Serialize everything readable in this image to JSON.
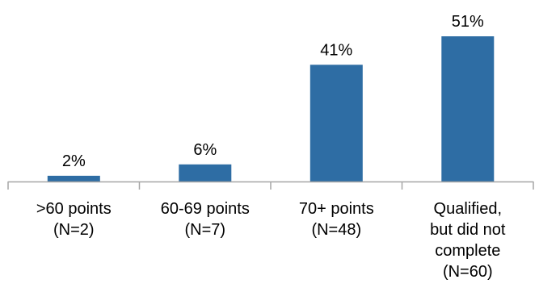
{
  "chart_data": {
    "type": "bar",
    "categories": [
      ">60 points (N=2)",
      "60-69 points (N=7)",
      "70+ points (N=48)",
      "Qualified, but did not complete (N=60)"
    ],
    "category_lines": [
      [
        ">60 points",
        "(N=2)"
      ],
      [
        "60-69 points",
        "(N=7)"
      ],
      [
        "70+ points",
        "(N=48)"
      ],
      [
        "Qualified,",
        "but did not",
        "complete",
        "(N=60)"
      ]
    ],
    "values": [
      2,
      6,
      41,
      51
    ],
    "data_labels": [
      "2%",
      "6%",
      "41%",
      "51%"
    ],
    "ylim": [
      0,
      51
    ],
    "grid": false,
    "bar_color": "#2E6DA4",
    "axis_color": "#A6A6A6"
  }
}
